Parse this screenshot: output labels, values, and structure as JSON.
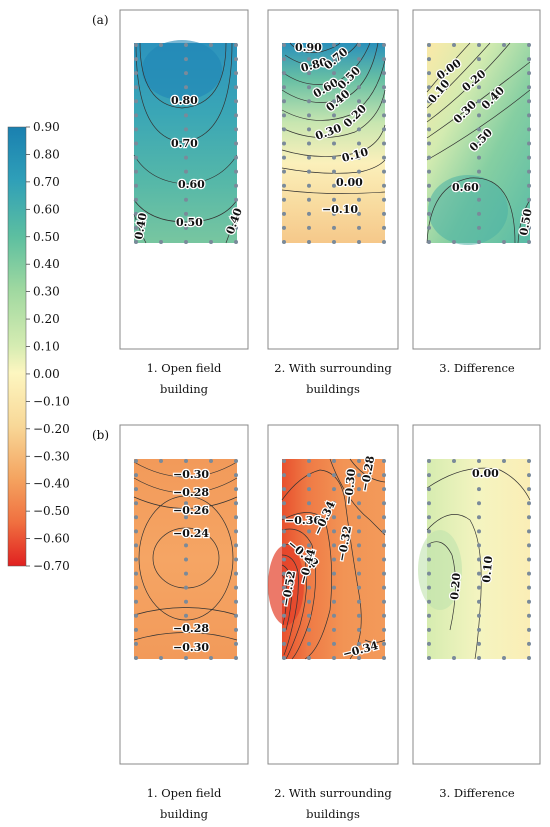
{
  "panels": {
    "a_label": "(a)",
    "b_label": "(b)"
  },
  "captions": {
    "open_field_line1": "1. Open field",
    "open_field_line2": "building",
    "surrounding_line1": "2. With surrounding",
    "surrounding_line2": "buildings",
    "difference": "3. Difference"
  },
  "colorbar": {
    "ticks": [
      "0.90",
      "0.80",
      "0.70",
      "0.60",
      "0.50",
      "0.40",
      "0.30",
      "0.20",
      "0.10",
      "0.00",
      "−0.10",
      "−0.20",
      "−0.30",
      "−0.40",
      "−0.50",
      "−0.60",
      "−0.70"
    ],
    "range": [
      -0.7,
      0.9
    ],
    "colors": [
      "#e02020",
      "#f07040",
      "#f4a460",
      "#f8d898",
      "#fdf6c0",
      "#d6ecb2",
      "#9fd8a0",
      "#5dbfa0",
      "#2f9fb8",
      "#1a80b0"
    ]
  },
  "contour_labels": {
    "a1": [
      "0.80",
      "0.70",
      "0.60",
      "0.50",
      "0.40",
      "0.40"
    ],
    "a2": [
      "0.90",
      "0.80",
      "0.70",
      "0.60",
      "0.50",
      "0.40",
      "0.30",
      "0.20",
      "0.10",
      "0.00",
      "−0.10"
    ],
    "a3": [
      "0.00",
      "0.10",
      "0.20",
      "0.30",
      "0.40",
      "0.50",
      "0.60",
      "0.50"
    ],
    "b1": [
      "−0.30",
      "−0.28",
      "−0.26",
      "−0.24",
      "−0.28",
      "−0.30"
    ],
    "b2": [
      "−0.28",
      "−0.30",
      "−0.36",
      "−0.34",
      "−0.32",
      "−0.42",
      "−0.44",
      "−0.52",
      "−0.34"
    ],
    "b3": [
      "0.00",
      "0.20",
      "0.10"
    ]
  }
}
